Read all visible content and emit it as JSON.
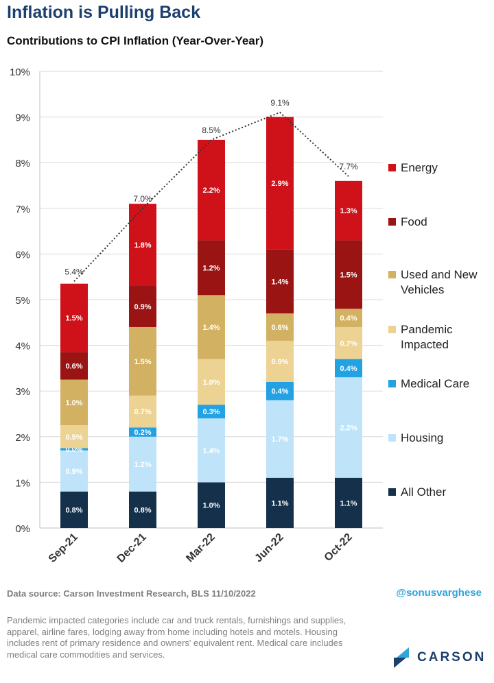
{
  "title": "Inflation is Pulling Back",
  "subtitle": "Contributions to CPI Inflation (Year-Over-Year)",
  "chart_data": {
    "type": "bar",
    "stacked": true,
    "categories": [
      "Sep-21",
      "Dec-21",
      "Mar-22",
      "Jun-22",
      "Oct-22"
    ],
    "ylim": [
      0,
      10
    ],
    "yticks": [
      "0%",
      "1%",
      "2%",
      "3%",
      "4%",
      "5%",
      "6%",
      "7%",
      "8%",
      "9%",
      "10%"
    ],
    "series": [
      {
        "name": "All Other",
        "color": "#14304a",
        "values": [
          0.8,
          0.8,
          1.0,
          1.1,
          1.1
        ],
        "labels": [
          "0.8%",
          "0.8%",
          "1.0%",
          "1.1%",
          "1.1%"
        ]
      },
      {
        "name": "Housing",
        "color": "#bfe4fa",
        "values": [
          0.9,
          1.2,
          1.4,
          1.7,
          2.2
        ],
        "labels": [
          "0.9%",
          "1.2%",
          "1.4%",
          "1.7%",
          "2.2%"
        ]
      },
      {
        "name": "Medical Care",
        "color": "#22a1e3",
        "values": [
          0.05,
          0.2,
          0.3,
          0.4,
          0.4
        ],
        "labels": [
          "0.0%",
          "0.2%",
          "0.3%",
          "0.4%",
          "0.4%"
        ]
      },
      {
        "name": "Pandemic Impacted",
        "color": "#ecd393",
        "values": [
          0.5,
          0.7,
          1.0,
          0.9,
          0.7
        ],
        "labels": [
          "0.5%",
          "0.7%",
          "1.0%",
          "0.9%",
          "0.7%"
        ]
      },
      {
        "name": "Used and New Vehicles",
        "color": "#d3b162",
        "values": [
          1.0,
          1.5,
          1.4,
          0.6,
          0.4
        ],
        "labels": [
          "1.0%",
          "1.5%",
          "1.4%",
          "0.6%",
          "0.4%"
        ]
      },
      {
        "name": "Food",
        "color": "#9a1414",
        "values": [
          0.6,
          0.9,
          1.2,
          1.4,
          1.5
        ],
        "labels": [
          "0.6%",
          "0.9%",
          "1.2%",
          "1.4%",
          "1.5%"
        ]
      },
      {
        "name": "Energy",
        "color": "#cf1219",
        "values": [
          1.5,
          1.8,
          2.2,
          2.9,
          1.3
        ],
        "labels": [
          "1.5%",
          "1.8%",
          "2.2%",
          "2.9%",
          "1.3%"
        ]
      }
    ],
    "totals": [
      5.4,
      7.0,
      8.5,
      9.1,
      7.7
    ],
    "total_labels": [
      "5.4%",
      "7.0%",
      "8.5%",
      "9.1%",
      "7.7%"
    ],
    "legend": {
      "position": "right",
      "items": [
        "Energy",
        "Food",
        "Used and New Vehicles",
        "Pandemic Impacted",
        "Medical Care",
        "Housing",
        "All Other"
      ]
    }
  },
  "source": "Data source: Carson Investment Research, BLS    11/10/2022",
  "handle": "@sonusvarghese",
  "footnote": "Pandemic impacted categories include car and truck rentals, furnishings and supplies, apparel, airline fares, lodging away from home including hotels and motels. Housing includes rent of primary residence and owners' equivalent rent. Medical care includes medical care commodities and services.",
  "logo": {
    "text": "CARSON",
    "color": "#1c3f6e",
    "accent": "#2ea3dc"
  }
}
